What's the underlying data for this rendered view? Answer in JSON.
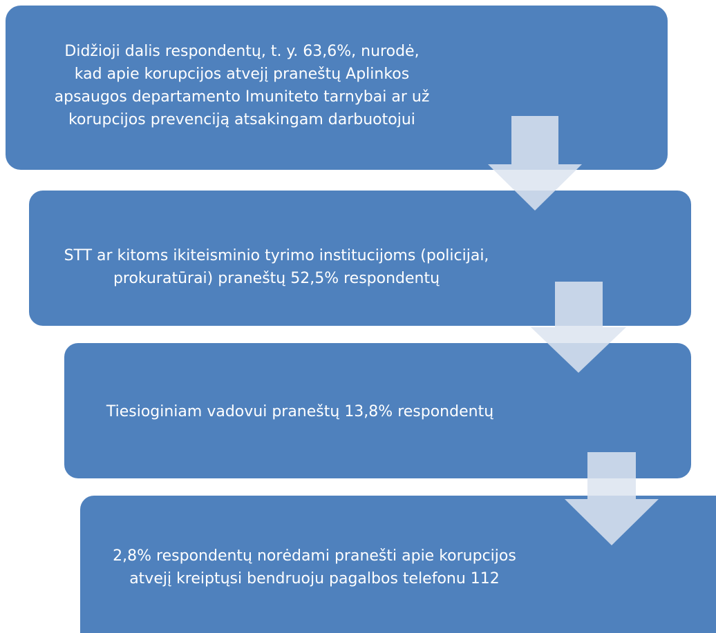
{
  "nodes": [
    {
      "lines": [
        "Didžioji dalis respondentų, t. y. 63,6%,  nurodė,",
        "kad apie korupcijos atvejį praneštų Aplinkos",
        "apsaugos departamento Imuniteto tarnybai ar už",
        "korupcijos prevenciją atsakingam darbuotojui"
      ]
    },
    {
      "lines": [
        "STT ar kitoms ikiteisminio tyrimo institucijoms (policijai,",
        "prokuratūrai) praneštų 52,5% respondentų"
      ]
    },
    {
      "lines": [
        "Tiesioginiam vadovui praneštų 13,8% respondentų"
      ]
    },
    {
      "lines": [
        "2,8% respondentų norėdami pranešti apie korupcijos",
        "atvejį kreiptųsi bendruoju pagalbos telefonu 112"
      ]
    }
  ]
}
